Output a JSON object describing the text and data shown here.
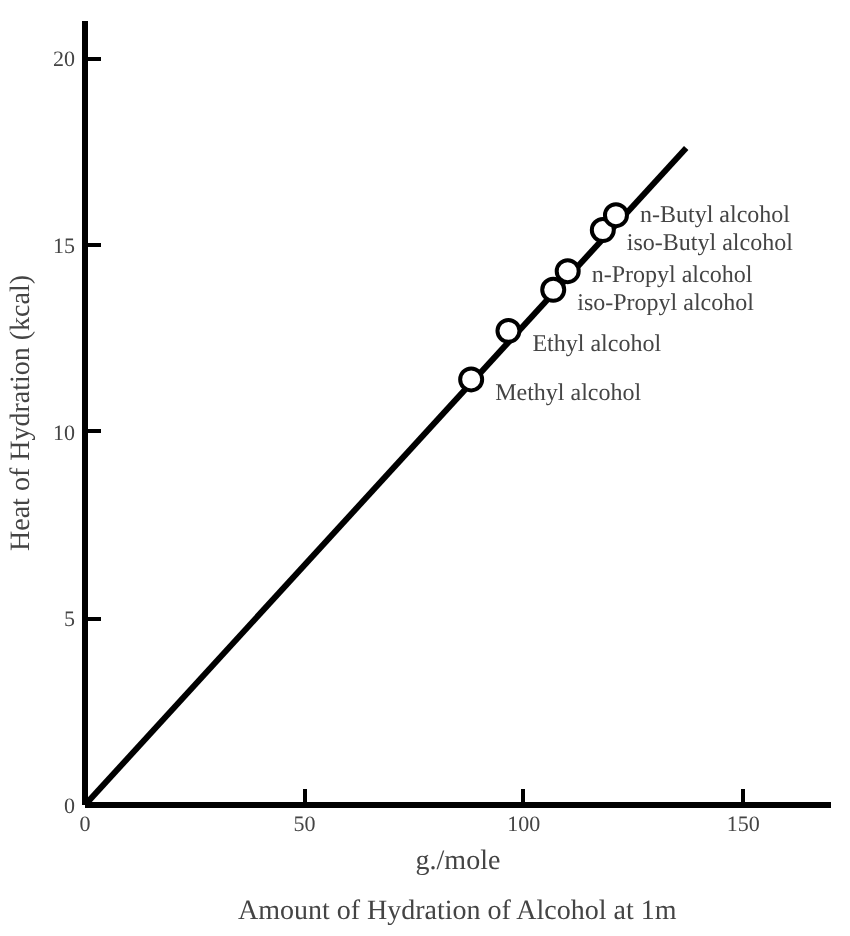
{
  "chart_data": {
    "type": "scatter",
    "title": "Amount of Hydration of Alcohol at 1m",
    "xlabel": "g./mole",
    "ylabel": "Heat of Hydration (kcal)",
    "xlim": [
      0,
      170
    ],
    "ylim": [
      0,
      21
    ],
    "xticks": [
      0,
      50,
      100,
      150
    ],
    "yticks": [
      0,
      5,
      10,
      15,
      20
    ],
    "grid": false,
    "marker": "circle",
    "series": [
      {
        "type": "line",
        "marker": "none",
        "color": "#000000",
        "x": [
          0,
          137
        ],
        "values": [
          0,
          17.6
        ]
      },
      {
        "color": "#000000",
        "x": [
          88,
          96.5,
          106.7,
          110,
          118,
          121
        ],
        "values": [
          11.4,
          12.7,
          13.8,
          14.3,
          15.4,
          15.8
        ]
      }
    ],
    "annotations": [
      {
        "text": "Methyl alcohol",
        "x": 88,
        "y": 11.4
      },
      {
        "text": "Ethyl alcohol",
        "x": 96.5,
        "y": 12.7
      },
      {
        "text": "iso-Propyl alcohol",
        "x": 106.7,
        "y": 13.8
      },
      {
        "text": "n-Propyl alcohol",
        "x": 110,
        "y": 14.3
      },
      {
        "text": "iso-Butyl alcohol",
        "x": 118,
        "y": 15.4
      },
      {
        "text": "n-Butyl alcohol",
        "x": 121,
        "y": 15.8
      }
    ]
  }
}
